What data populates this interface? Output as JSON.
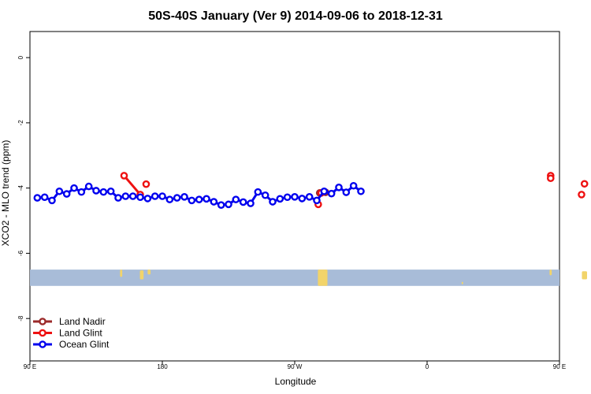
{
  "chart_data": {
    "type": "line",
    "title": "50S-40S January (Ver 9)   2014-09-06 to 2018-12-31",
    "xlabel": "Longitude",
    "ylabel": "XCO2 - MLO trend (ppm)",
    "xlim": [
      90,
      450
    ],
    "ylim": [
      -9.3,
      0.8
    ],
    "xticks": [
      {
        "value": 90,
        "label": "90 E"
      },
      {
        "value": 180,
        "label": "180"
      },
      {
        "value": 270,
        "label": "90 W"
      },
      {
        "value": 360,
        "label": "0"
      },
      {
        "value": 450,
        "label": "90 E"
      },
      {
        "value": 540,
        "label": "180"
      }
    ],
    "yticks": [
      {
        "value": 0,
        "label": "0"
      },
      {
        "value": -2,
        "label": "-2"
      },
      {
        "value": -4,
        "label": "-4"
      },
      {
        "value": -6,
        "label": "-6"
      },
      {
        "value": -8,
        "label": "-8"
      }
    ],
    "grid": false,
    "legend_position": "bottom-left",
    "map_band": {
      "y_range": [
        -7.0,
        -6.5
      ],
      "ocean_color": "#a8bcd8",
      "land_color": "#f2d46a"
    },
    "series": [
      {
        "name": "Land Nadir",
        "color": "#9b2a2a",
        "points": [
          [
            287,
            -4.15
          ],
          [
            291,
            -4.13
          ]
        ]
      },
      {
        "name": "Land Glint",
        "color": "#ee1111",
        "points": [
          [
            154,
            -3.62
          ],
          [
            165,
            -4.2
          ],
          [
            169,
            -3.88
          ],
          [
            286,
            -4.5
          ],
          [
            288,
            -4.15
          ],
          [
            444,
            -3.62
          ],
          [
            444,
            -3.7
          ],
          [
            465,
            -4.2
          ],
          [
            467,
            -3.87
          ]
        ]
      },
      {
        "name": "Ocean Glint",
        "color": "#0000ee",
        "points": [
          [
            95,
            -4.3
          ],
          [
            100,
            -4.28
          ],
          [
            105,
            -4.38
          ],
          [
            110,
            -4.1
          ],
          [
            115,
            -4.18
          ],
          [
            120,
            -4.0
          ],
          [
            125,
            -4.12
          ],
          [
            130,
            -3.95
          ],
          [
            135,
            -4.08
          ],
          [
            140,
            -4.12
          ],
          [
            145,
            -4.1
          ],
          [
            150,
            -4.3
          ],
          [
            155,
            -4.25
          ],
          [
            160,
            -4.25
          ],
          [
            165,
            -4.28
          ],
          [
            170,
            -4.32
          ],
          [
            175,
            -4.25
          ],
          [
            180,
            -4.25
          ],
          [
            185,
            -4.35
          ],
          [
            190,
            -4.3
          ],
          [
            195,
            -4.27
          ],
          [
            200,
            -4.38
          ],
          [
            205,
            -4.35
          ],
          [
            210,
            -4.33
          ],
          [
            215,
            -4.42
          ],
          [
            220,
            -4.52
          ],
          [
            225,
            -4.5
          ],
          [
            230,
            -4.35
          ],
          [
            235,
            -4.43
          ],
          [
            240,
            -4.47
          ],
          [
            245,
            -4.12
          ],
          [
            250,
            -4.22
          ],
          [
            255,
            -4.42
          ],
          [
            260,
            -4.33
          ],
          [
            265,
            -4.28
          ],
          [
            270,
            -4.27
          ],
          [
            275,
            -4.32
          ],
          [
            280,
            -4.27
          ],
          [
            285,
            -4.38
          ],
          [
            290,
            -4.1
          ],
          [
            295,
            -4.17
          ],
          [
            300,
            -3.98
          ],
          [
            305,
            -4.13
          ],
          [
            310,
            -3.93
          ],
          [
            315,
            -4.1
          ]
        ]
      }
    ]
  }
}
